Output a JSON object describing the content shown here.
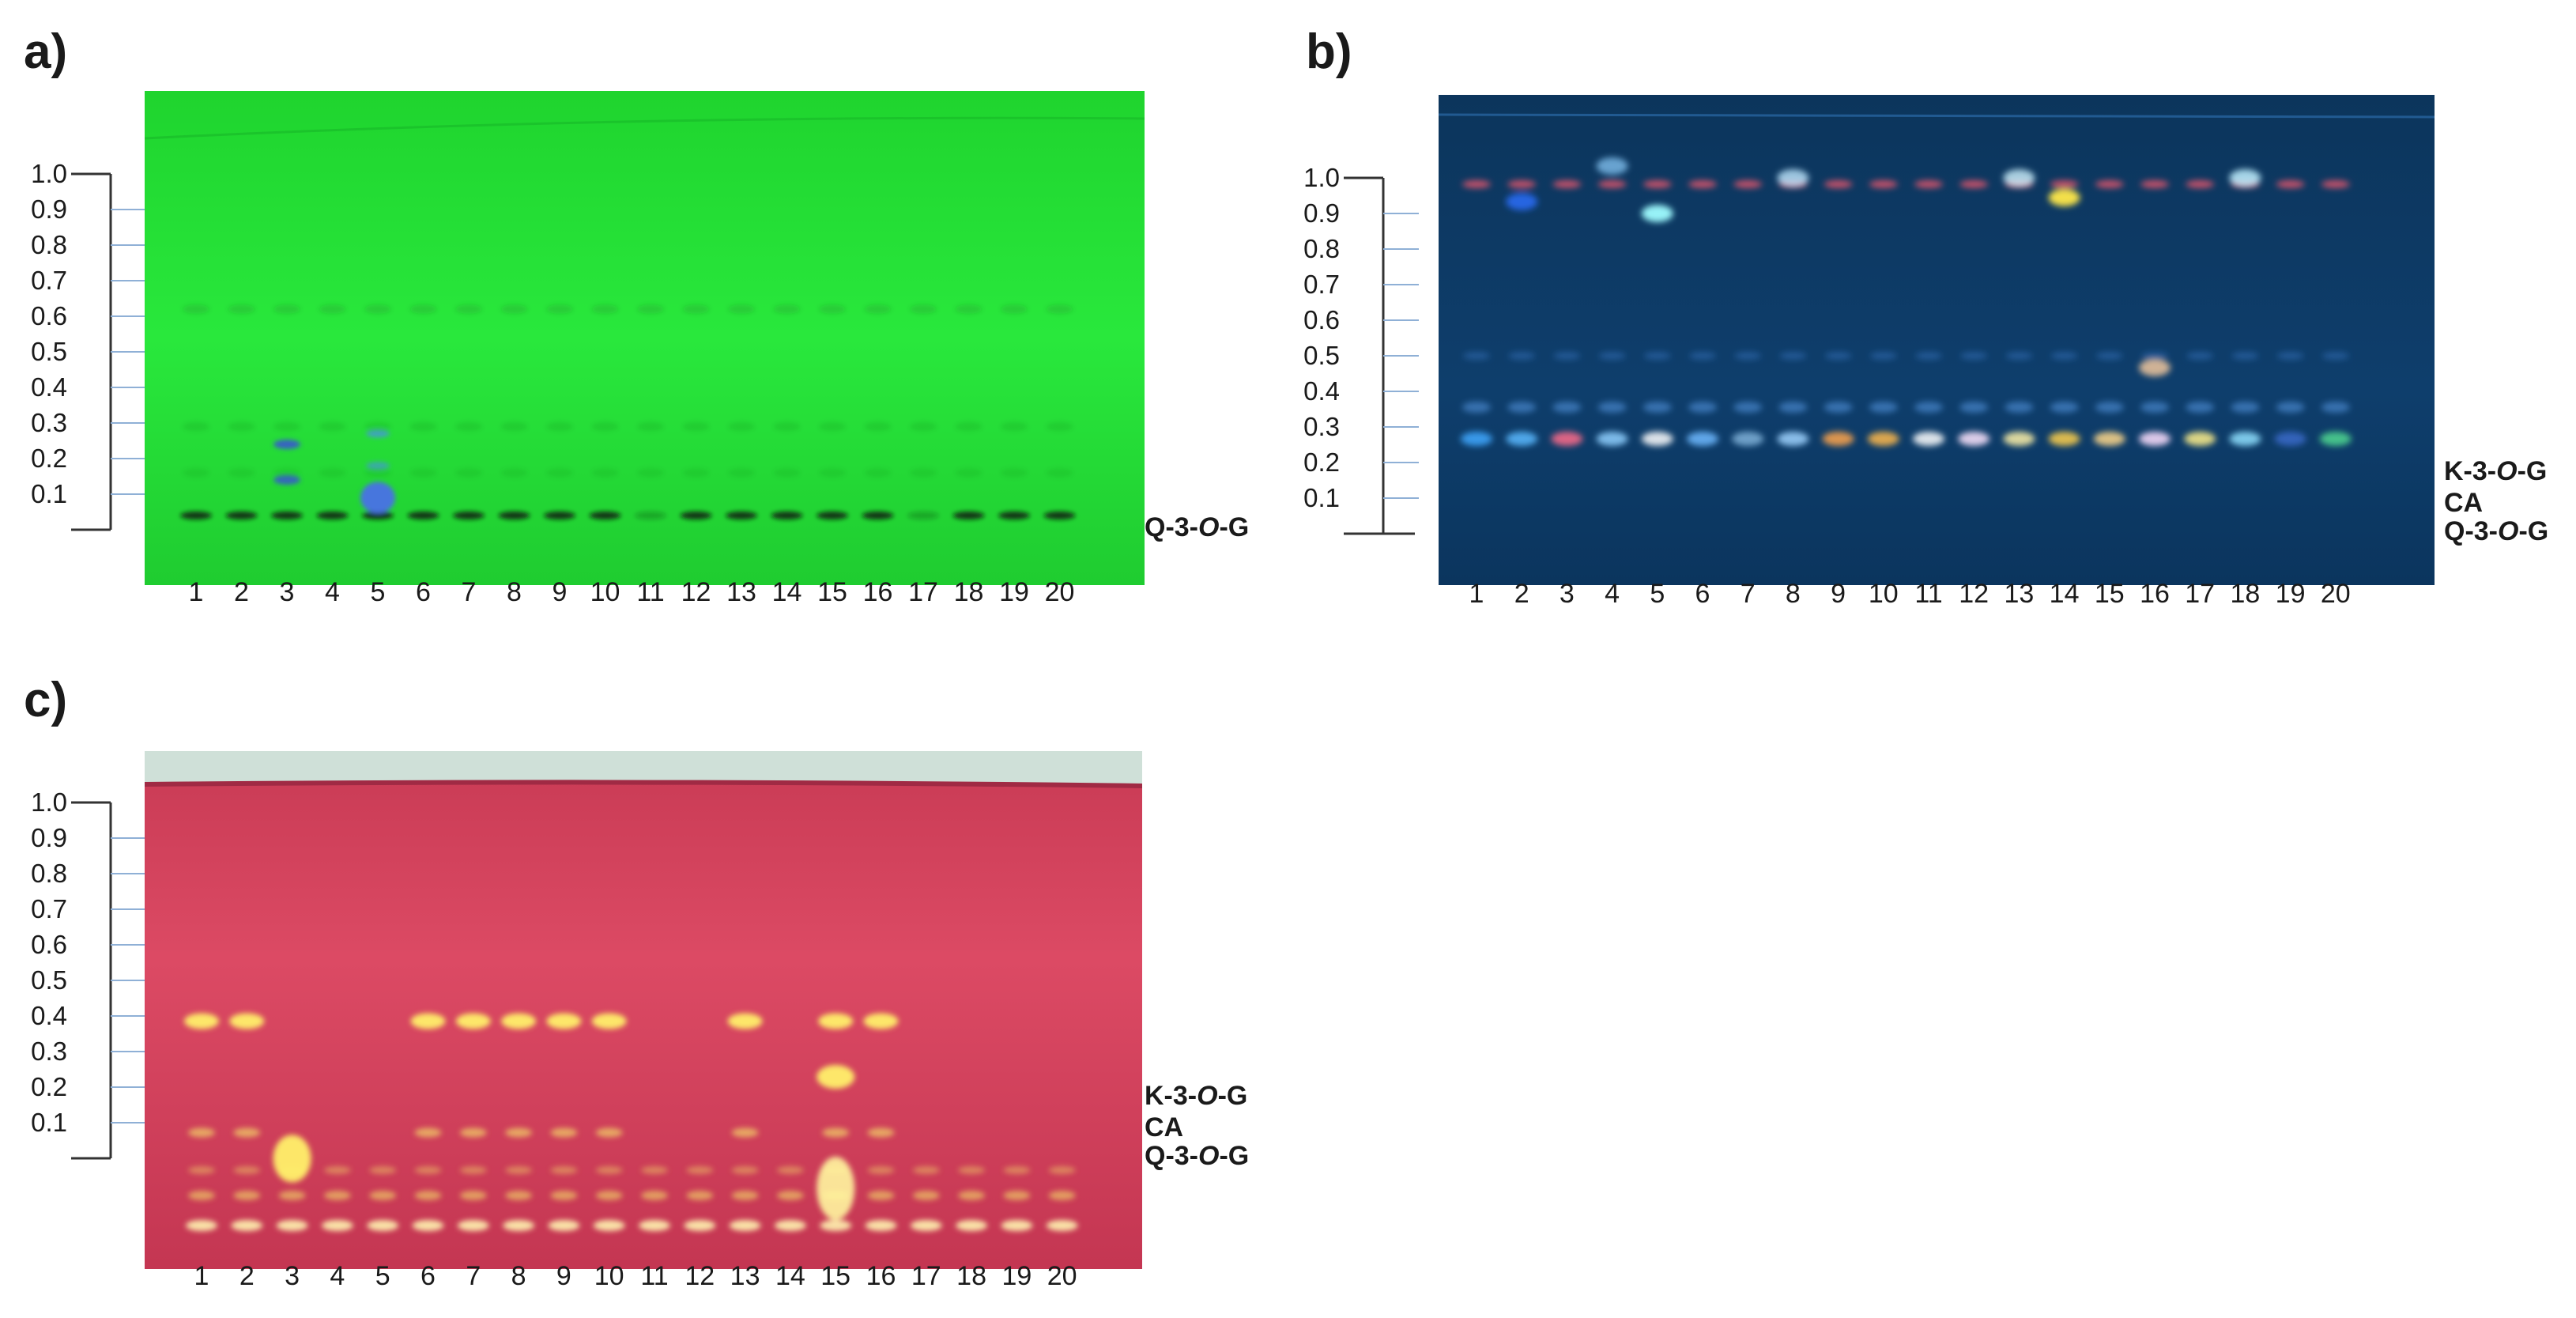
{
  "panels": [
    {
      "id": "a",
      "label": "a)",
      "rf_ticks": [
        "1.0",
        "0.9",
        "0.8",
        "0.7",
        "0.6",
        "0.5",
        "0.4",
        "0.3",
        "0.2",
        "0.1"
      ],
      "lanes": [
        "1",
        "2",
        "3",
        "4",
        "5",
        "6",
        "7",
        "8",
        "9",
        "10",
        "11",
        "12",
        "13",
        "14",
        "15",
        "16",
        "17",
        "18",
        "19",
        "20"
      ],
      "standards": [
        {
          "parts": [
            "Q-3-",
            "O",
            "-G"
          ],
          "rf": 0.0
        }
      ],
      "plate_colors": {
        "background": "#22e03a",
        "band": "#0b1a0b",
        "accent": "#3a4fd8"
      }
    },
    {
      "id": "b",
      "label": "b)",
      "rf_ticks": [
        "1.0",
        "0.9",
        "0.8",
        "0.7",
        "0.6",
        "0.5",
        "0.4",
        "0.3",
        "0.2",
        "0.1"
      ],
      "lanes": [
        "1",
        "2",
        "3",
        "4",
        "5",
        "6",
        "7",
        "8",
        "9",
        "10",
        "11",
        "12",
        "13",
        "14",
        "15",
        "16",
        "17",
        "18",
        "19",
        "20"
      ],
      "standards": [
        {
          "parts": [
            "K-3-",
            "O",
            "-G"
          ],
          "rf": 0.17
        },
        {
          "parts": [
            "CA"
          ],
          "rf": 0.08
        },
        {
          "parts": [
            "Q-3-",
            "O",
            "-G"
          ],
          "rf": 0.0
        }
      ],
      "plate_colors": {
        "background": "#0b3a66",
        "band": "#38a6e8",
        "accent": "#ff5a6e"
      }
    },
    {
      "id": "c",
      "label": "c)",
      "rf_ticks": [
        "1.0",
        "0.9",
        "0.8",
        "0.7",
        "0.6",
        "0.5",
        "0.4",
        "0.3",
        "0.2",
        "0.1"
      ],
      "lanes": [
        "1",
        "2",
        "3",
        "4",
        "5",
        "6",
        "7",
        "8",
        "9",
        "10",
        "11",
        "12",
        "13",
        "14",
        "15",
        "16",
        "17",
        "18",
        "19",
        "20"
      ],
      "standards": [
        {
          "parts": [
            "K-3-",
            "O",
            "-G"
          ],
          "rf": 0.17
        },
        {
          "parts": [
            "CA"
          ],
          "rf": 0.08
        },
        {
          "parts": [
            "Q-3-",
            "O",
            "-G"
          ],
          "rf": 0.0
        }
      ],
      "plate_colors": {
        "background": "#d84860",
        "band": "#f8ec6a",
        "accent": "#fff3b0"
      }
    }
  ]
}
